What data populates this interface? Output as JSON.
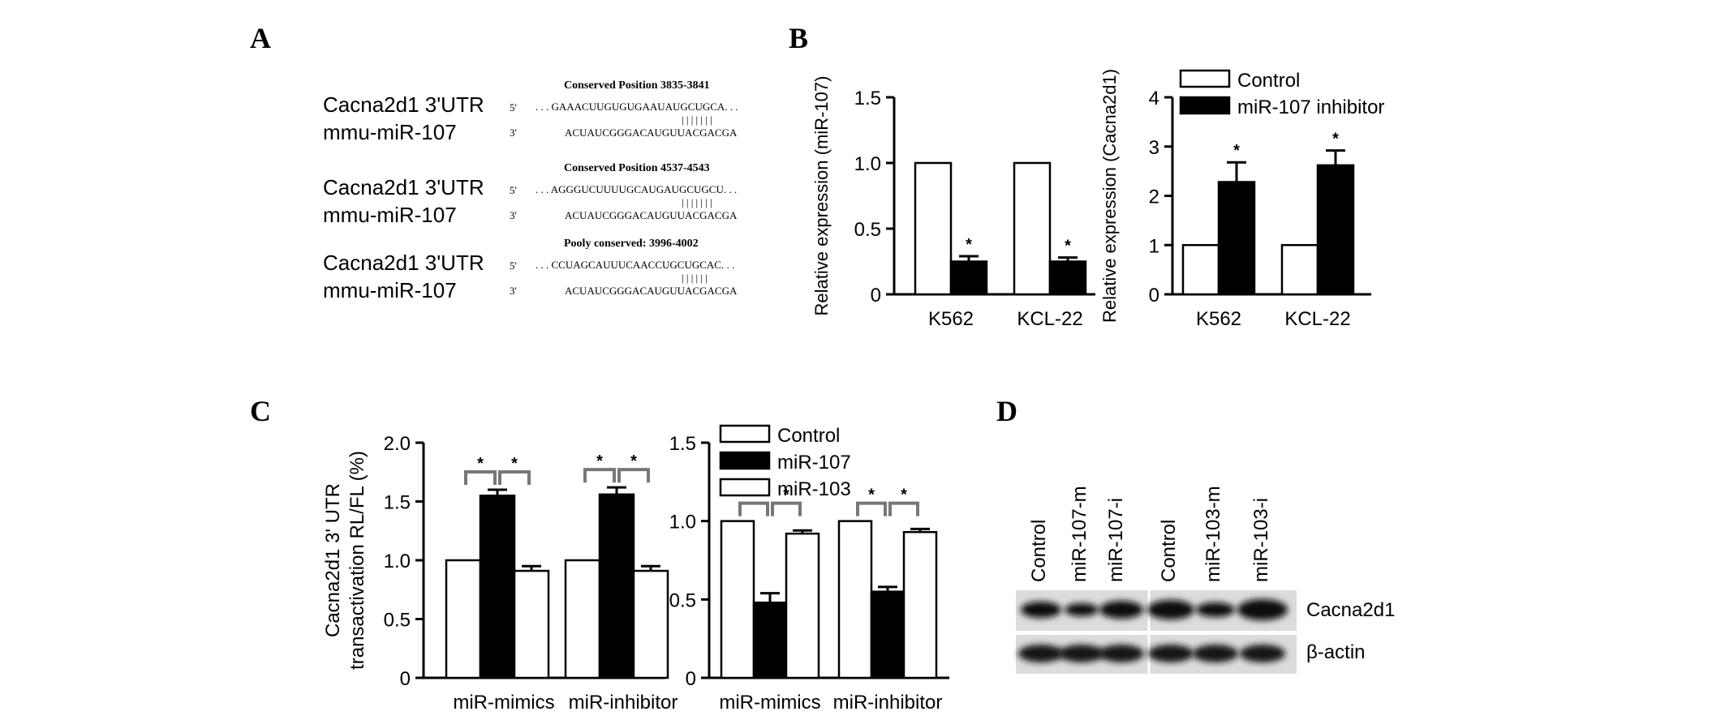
{
  "panels": {
    "A": "A",
    "B": "B",
    "C": "C",
    "D": "D"
  },
  "panelA": {
    "rows": [
      {
        "conserved": "Conserved Position 3835-3841",
        "utr_label": "Cacna2d1 3'UTR",
        "utr_prime": "5'",
        "utr_seq": ". . . GAAACUUGUGUGAAUAUGCUGCA. . .",
        "pairs": "| | | | | | |",
        "mir_label": "mmu-miR-107",
        "mir_prime": "3'",
        "mir_seq": "ACUAUCGGGACAUGUUACGACGA"
      },
      {
        "conserved": "Conserved Position 4537-4543",
        "utr_label": "Cacna2d1 3'UTR",
        "utr_prime": "5'",
        "utr_seq": ". . . AGGGUCUUUUGCAUGAUGCUGCU. . .",
        "pairs": "| | | | | | |",
        "mir_label": "mmu-miR-107",
        "mir_prime": "3'",
        "mir_seq": "ACUAUCGGGACAUGUUACGACGA"
      },
      {
        "conserved": "Pooly conserved: 3996-4002",
        "utr_label": "Cacna2d1 3'UTR",
        "utr_prime": "5'",
        "utr_seq": ". . . CCUAGCAUUUCAACCUGCUGCAC. . .",
        "pairs": "| | | | | |",
        "mir_label": "mmu-miR-107",
        "mir_prime": "3'",
        "mir_seq": "ACUAUCGGGACAUGUUACGACGA"
      }
    ]
  },
  "chart_data": [
    {
      "id": "B1",
      "type": "bar",
      "ylabel": "Relative expression (miR-107)",
      "ylim": [
        0,
        1.5
      ],
      "yticks": [
        "0",
        "0.5",
        "1.0",
        "1.5"
      ],
      "ytick_values": [
        0,
        0.5,
        1.0,
        1.5
      ],
      "categories": [
        "K562",
        "KCL-22"
      ],
      "series": [
        {
          "name": "Control",
          "fill": "#ffffff",
          "values": [
            1.0,
            1.0
          ],
          "errors": [
            0,
            0
          ]
        },
        {
          "name": "miR-107 inhibitor",
          "fill": "#000000",
          "values": [
            0.25,
            0.25
          ],
          "errors": [
            0.04,
            0.03
          ]
        }
      ],
      "stars": [
        "*",
        "*"
      ]
    },
    {
      "id": "B2",
      "type": "bar",
      "ylabel": "Relative expression (Cacna2d1)",
      "ylim": [
        0,
        4
      ],
      "yticks": [
        "0",
        "1",
        "2",
        "3",
        "4"
      ],
      "ytick_values": [
        0,
        1,
        2,
        3,
        4
      ],
      "categories": [
        "K562",
        "KCL-22"
      ],
      "series": [
        {
          "name": "Control",
          "fill": "#ffffff",
          "values": [
            1.0,
            1.0
          ],
          "errors": [
            0,
            0
          ]
        },
        {
          "name": "miR-107 inhibitor",
          "fill": "#000000",
          "values": [
            2.28,
            2.62
          ],
          "errors": [
            0.4,
            0.3
          ]
        }
      ],
      "stars": [
        "*",
        "*"
      ],
      "legend": [
        "Control",
        "miR-107 inhibitor"
      ],
      "legend_position": "top"
    },
    {
      "id": "C1",
      "type": "bar",
      "ylabel_lines": [
        "Cacna2d1 3' UTR",
        "transactivation RL/FL (%)"
      ],
      "ylim": [
        0,
        2.0
      ],
      "yticks": [
        "0",
        "0.5",
        "1.0",
        "1.5",
        "2.0"
      ],
      "ytick_values": [
        0,
        0.5,
        1.0,
        1.5,
        2.0
      ],
      "categories": [
        "miR-mimics",
        "miR-inhibitor"
      ],
      "series": [
        {
          "name": "Control",
          "fill": "#ffffff",
          "values": [
            1.0,
            1.0
          ],
          "errors": [
            0,
            0
          ]
        },
        {
          "name": "miR-107",
          "fill": "#000000",
          "values": [
            1.55,
            1.56
          ],
          "errors": [
            0.05,
            0.06
          ]
        },
        {
          "name": "miR-103",
          "fill": "#ffffff",
          "values": [
            0.91,
            0.91
          ],
          "errors": [
            0.04,
            0.04
          ]
        }
      ],
      "stars": [
        "*",
        "*"
      ]
    },
    {
      "id": "C2",
      "type": "bar",
      "ylim": [
        0,
        1.5
      ],
      "yticks": [
        "0",
        "0.5",
        "1.0",
        "1.5"
      ],
      "ytick_values": [
        0,
        0.5,
        1.0,
        1.5
      ],
      "categories": [
        "miR-mimics",
        "miR-inhibitor"
      ],
      "series": [
        {
          "name": "Control",
          "fill": "#ffffff",
          "values": [
            1.0,
            1.0
          ],
          "errors": [
            0,
            0
          ]
        },
        {
          "name": "miR-107",
          "fill": "#000000",
          "values": [
            0.48,
            0.55
          ],
          "errors": [
            0.06,
            0.03
          ]
        },
        {
          "name": "miR-103",
          "fill": "#ffffff",
          "values": [
            0.92,
            0.93
          ],
          "errors": [
            0.02,
            0.02
          ]
        }
      ],
      "stars": [
        "*",
        "*"
      ],
      "legend": [
        "Control",
        "miR-107",
        "miR-103"
      ],
      "legend_position": "top"
    }
  ],
  "panelD": {
    "lanes": [
      "Control",
      "miR-107-m",
      "miR-107-i",
      "Control",
      "miR-103-m",
      "miR-103-i"
    ],
    "bands": [
      "Cacna2d1",
      "β-actin"
    ]
  }
}
